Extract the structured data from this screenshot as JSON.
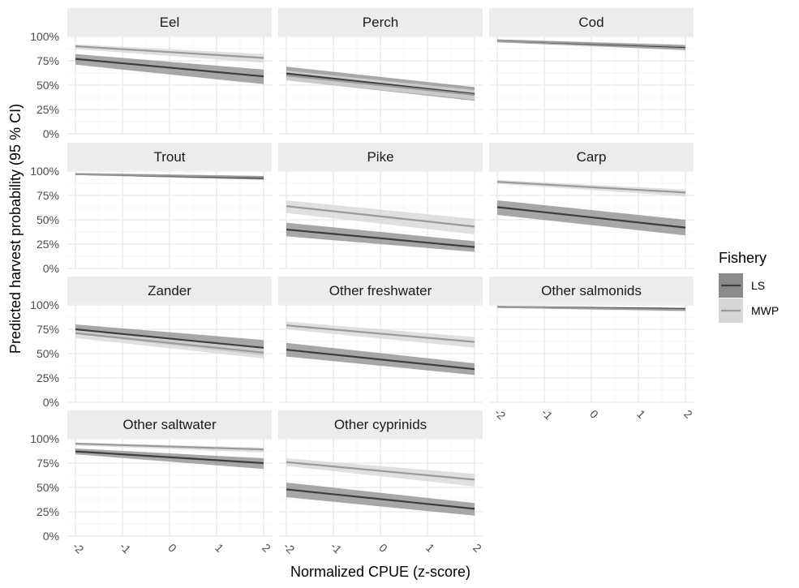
{
  "chart_data": {
    "type": "line",
    "xlabel": "Normalized CPUE (z-score)",
    "ylabel": "Predicted harvest probability (95 % CI)",
    "xlim": [
      -2,
      2
    ],
    "ylim": [
      0,
      1
    ],
    "x_ticks": [
      -2,
      -1,
      0,
      1,
      2
    ],
    "x_tick_labels": [
      "-2",
      "-1",
      "0",
      "1",
      "2"
    ],
    "y_ticks": [
      0,
      0.25,
      0.5,
      0.75,
      1
    ],
    "y_tick_labels": [
      "0%",
      "25%",
      "50%",
      "75%",
      "100%"
    ],
    "grid": true,
    "legend": {
      "title": "Fishery",
      "position": "right",
      "entries": [
        {
          "name": "LS",
          "color": "#3d3d3d",
          "band_color": "#8a8a8a"
        },
        {
          "name": "MWP",
          "color": "#9a9a9a",
          "band_color": "#d6d6d6"
        }
      ]
    },
    "panels": [
      {
        "title": "Eel",
        "series": [
          {
            "name": "LS",
            "x": [
              -2,
              2
            ],
            "y": [
              0.77,
              0.59
            ],
            "lower": [
              0.71,
              0.51
            ],
            "upper": [
              0.82,
              0.66
            ]
          },
          {
            "name": "MWP",
            "x": [
              -2,
              2
            ],
            "y": [
              0.9,
              0.78
            ],
            "lower": [
              0.87,
              0.73
            ],
            "upper": [
              0.92,
              0.82
            ]
          }
        ]
      },
      {
        "title": "Perch",
        "series": [
          {
            "name": "LS",
            "x": [
              -2,
              2
            ],
            "y": [
              0.62,
              0.41
            ],
            "lower": [
              0.55,
              0.34
            ],
            "upper": [
              0.69,
              0.48
            ]
          },
          {
            "name": "MWP",
            "x": [
              -2,
              2
            ],
            "y": [
              0.6,
              0.4
            ],
            "lower": [
              0.55,
              0.35
            ],
            "upper": [
              0.65,
              0.45
            ]
          }
        ]
      },
      {
        "title": "Cod",
        "series": [
          {
            "name": "LS",
            "x": [
              -2,
              2
            ],
            "y": [
              0.96,
              0.89
            ],
            "lower": [
              0.94,
              0.86
            ],
            "upper": [
              0.97,
              0.91
            ]
          },
          {
            "name": "MWP",
            "x": [
              -2,
              2
            ],
            "y": [
              0.96,
              0.9
            ],
            "lower": [
              0.95,
              0.88
            ],
            "upper": [
              0.97,
              0.92
            ]
          }
        ]
      },
      {
        "title": "Trout",
        "series": [
          {
            "name": "LS",
            "x": [
              -2,
              2
            ],
            "y": [
              0.97,
              0.93
            ],
            "lower": [
              0.96,
              0.91
            ],
            "upper": [
              0.98,
              0.95
            ]
          },
          {
            "name": "MWP",
            "x": [
              -2,
              2
            ],
            "y": [
              0.97,
              0.94
            ],
            "lower": [
              0.96,
              0.92
            ],
            "upper": [
              0.98,
              0.95
            ]
          }
        ]
      },
      {
        "title": "Pike",
        "series": [
          {
            "name": "LS",
            "x": [
              -2,
              2
            ],
            "y": [
              0.4,
              0.22
            ],
            "lower": [
              0.33,
              0.17
            ],
            "upper": [
              0.47,
              0.28
            ]
          },
          {
            "name": "MWP",
            "x": [
              -2,
              2
            ],
            "y": [
              0.64,
              0.43
            ],
            "lower": [
              0.57,
              0.35
            ],
            "upper": [
              0.7,
              0.51
            ]
          }
        ]
      },
      {
        "title": "Carp",
        "series": [
          {
            "name": "LS",
            "x": [
              -2,
              2
            ],
            "y": [
              0.63,
              0.42
            ],
            "lower": [
              0.55,
              0.34
            ],
            "upper": [
              0.7,
              0.5
            ]
          },
          {
            "name": "MWP",
            "x": [
              -2,
              2
            ],
            "y": [
              0.89,
              0.78
            ],
            "lower": [
              0.87,
              0.74
            ],
            "upper": [
              0.91,
              0.81
            ]
          }
        ]
      },
      {
        "title": "Zander",
        "series": [
          {
            "name": "LS",
            "x": [
              -2,
              2
            ],
            "y": [
              0.75,
              0.56
            ],
            "lower": [
              0.7,
              0.48
            ],
            "upper": [
              0.8,
              0.64
            ]
          },
          {
            "name": "MWP",
            "x": [
              -2,
              2
            ],
            "y": [
              0.71,
              0.51
            ],
            "lower": [
              0.66,
              0.45
            ],
            "upper": [
              0.76,
              0.57
            ]
          }
        ]
      },
      {
        "title": "Other freshwater",
        "series": [
          {
            "name": "LS",
            "x": [
              -2,
              2
            ],
            "y": [
              0.54,
              0.34
            ],
            "lower": [
              0.47,
              0.28
            ],
            "upper": [
              0.61,
              0.4
            ]
          },
          {
            "name": "MWP",
            "x": [
              -2,
              2
            ],
            "y": [
              0.79,
              0.62
            ],
            "lower": [
              0.75,
              0.56
            ],
            "upper": [
              0.83,
              0.67
            ]
          }
        ]
      },
      {
        "title": "Other salmonids",
        "series": [
          {
            "name": "LS",
            "x": [
              -2,
              2
            ],
            "y": [
              0.98,
              0.96
            ],
            "lower": [
              0.97,
              0.94
            ],
            "upper": [
              0.99,
              0.97
            ]
          },
          {
            "name": "MWP",
            "x": [
              -2,
              2
            ],
            "y": [
              0.98,
              0.95
            ],
            "lower": [
              0.97,
              0.93
            ],
            "upper": [
              0.99,
              0.97
            ]
          }
        ]
      },
      {
        "title": "Other saltwater",
        "series": [
          {
            "name": "LS",
            "x": [
              -2,
              2
            ],
            "y": [
              0.87,
              0.75
            ],
            "lower": [
              0.84,
              0.69
            ],
            "upper": [
              0.9,
              0.8
            ]
          },
          {
            "name": "MWP",
            "x": [
              -2,
              2
            ],
            "y": [
              0.95,
              0.89
            ],
            "lower": [
              0.93,
              0.86
            ],
            "upper": [
              0.96,
              0.91
            ]
          }
        ]
      },
      {
        "title": "Other cyprinids",
        "series": [
          {
            "name": "LS",
            "x": [
              -2,
              2
            ],
            "y": [
              0.48,
              0.28
            ],
            "lower": [
              0.4,
              0.21
            ],
            "upper": [
              0.55,
              0.34
            ]
          },
          {
            "name": "MWP",
            "x": [
              -2,
              2
            ],
            "y": [
              0.76,
              0.58
            ],
            "lower": [
              0.72,
              0.51
            ],
            "upper": [
              0.8,
              0.64
            ]
          }
        ]
      }
    ]
  }
}
